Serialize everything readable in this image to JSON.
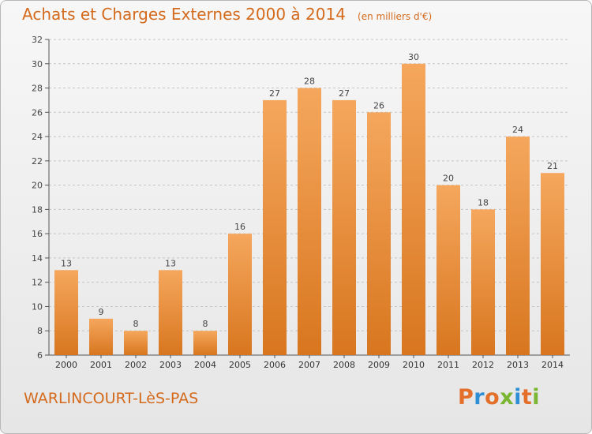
{
  "header": {
    "title": "Achats et Charges Externes 2000 à 2014",
    "subtitle": "(en milliers d'€)"
  },
  "footer": {
    "town": "WARLINCOURT-LèS-PAS",
    "logo_text": "Proxiti"
  },
  "colors": {
    "accent": "#d46a1c",
    "bar_light": "#f5a75d",
    "bar_dark": "#d8761f",
    "logo_letters": [
      "#e36f2a",
      "#2f8fd6",
      "#e36f2a",
      "#7ab631",
      "#2f8fd6",
      "#e36f2a",
      "#7ab631"
    ]
  },
  "chart_data": {
    "type": "bar",
    "title": "Achats et Charges Externes 2000 à 2014",
    "subtitle": "(en milliers d'€)",
    "categories": [
      "2000",
      "2001",
      "2002",
      "2003",
      "2004",
      "2005",
      "2006",
      "2007",
      "2008",
      "2009",
      "2010",
      "2011",
      "2012",
      "2013",
      "2014"
    ],
    "values": [
      13,
      9,
      8,
      13,
      8,
      16,
      27,
      28,
      27,
      26,
      30,
      20,
      18,
      24,
      21
    ],
    "ylim": [
      6,
      32
    ],
    "yticks": [
      6,
      8,
      10,
      12,
      14,
      16,
      18,
      20,
      22,
      24,
      26,
      28,
      30,
      32
    ],
    "grid": true,
    "data_labels": true
  }
}
